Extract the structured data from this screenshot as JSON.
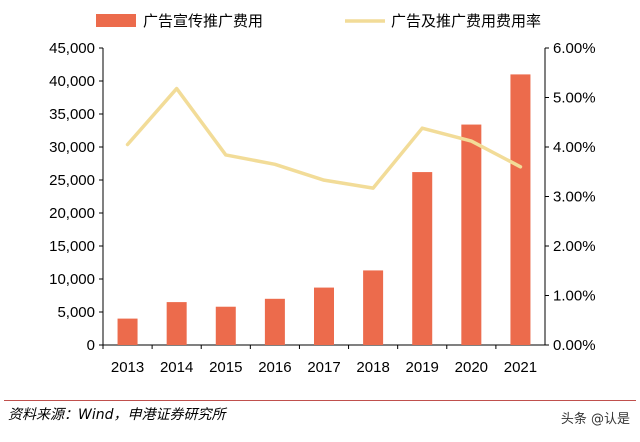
{
  "chart_data": {
    "type": "bar+line",
    "categories": [
      "2013",
      "2014",
      "2015",
      "2016",
      "2017",
      "2018",
      "2019",
      "2020",
      "2021"
    ],
    "series": [
      {
        "name": "广告宣传推广费用",
        "type": "bar",
        "axis": "left",
        "values": [
          4000,
          6500,
          5800,
          7000,
          8700,
          11300,
          26200,
          33400,
          41000
        ]
      },
      {
        "name": "广告及推广费用费用率",
        "type": "line",
        "axis": "right",
        "values": [
          4.05,
          5.18,
          3.84,
          3.65,
          3.33,
          3.17,
          4.38,
          4.12,
          3.6
        ]
      }
    ],
    "left_axis": {
      "ylim": [
        0,
        45000
      ],
      "ticks": [
        "0",
        "5,000",
        "10,000",
        "15,000",
        "20,000",
        "25,000",
        "30,000",
        "35,000",
        "40,000",
        "45,000"
      ]
    },
    "right_axis": {
      "ylim": [
        0,
        6
      ],
      "ticks": [
        "0.00%",
        "1.00%",
        "2.00%",
        "3.00%",
        "4.00%",
        "5.00%",
        "6.00%"
      ]
    },
    "legend_position": "top",
    "grid": false,
    "colors": {
      "bar": "#ec6b4c",
      "line": "#f2dc98"
    }
  },
  "footer": {
    "source": "资料来源：Wind，申港证券研究所",
    "watermark": "头条 @认是"
  }
}
